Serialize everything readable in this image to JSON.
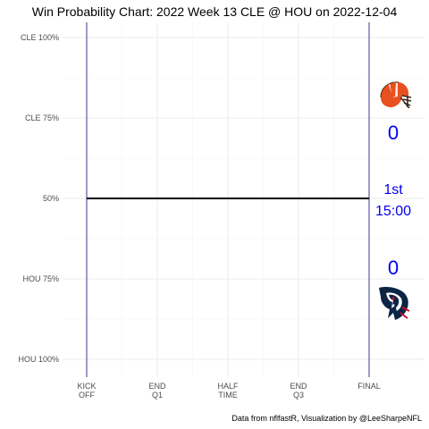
{
  "chart_data": {
    "type": "line",
    "title": "Win Probability Chart: 2022 Week 13 CLE @ HOU on 2022-12-04",
    "y_ticks": [
      "CLE 100%",
      "CLE 75%",
      "50%",
      "HOU 75%",
      "HOU 100%"
    ],
    "y_tick_values": [
      1.0,
      0.75,
      0.5,
      0.25,
      0.0
    ],
    "x_ticks": [
      {
        "line1": "KICK",
        "line2": "OFF",
        "value": 0
      },
      {
        "line1": "END",
        "line2": "Q1",
        "value": 900
      },
      {
        "line1": "HALF",
        "line2": "TIME",
        "value": 1800
      },
      {
        "line1": "END",
        "line2": "Q3",
        "value": 2700
      },
      {
        "line1": "FINAL",
        "line2": "",
        "value": 3600
      }
    ],
    "xlim": [
      0,
      3600
    ],
    "ylim": [
      0,
      1
    ],
    "series": [
      {
        "x": [
          0,
          3600
        ],
        "values": [
          0.5,
          0.5
        ]
      }
    ],
    "grid": true,
    "line_color": "#000000",
    "boundary_color": "#3a3a8c",
    "caption": "Data from nflfastR, Visualization by @LeeSharpeNFL"
  },
  "scoreboard": {
    "away_team": "CLE",
    "home_team": "HOU",
    "away_score": "0",
    "home_score": "0",
    "quarter": "1st",
    "clock": "15:00",
    "away_logo_icon": "browns-helmet-icon",
    "home_logo_icon": "texans-logo-icon",
    "score_color": "#0000ee"
  }
}
